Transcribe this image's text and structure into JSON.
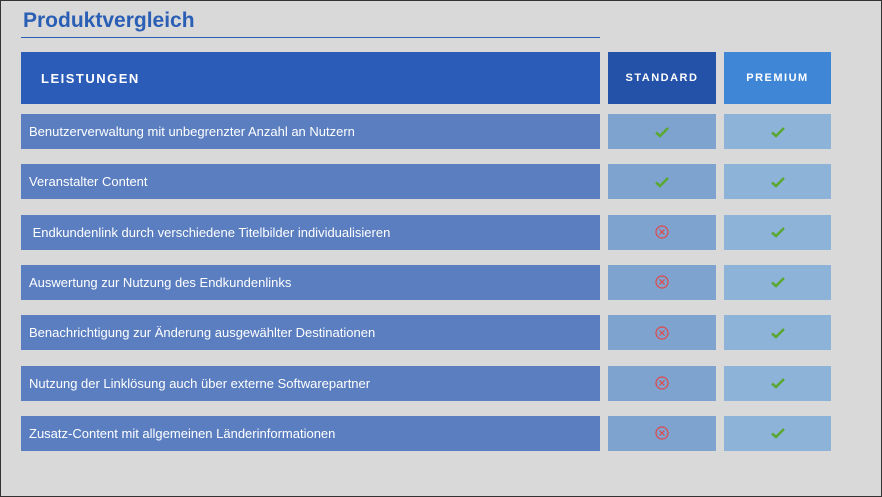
{
  "header": {
    "title": "Produktvergleich"
  },
  "table": {
    "columns": [
      "LEISTUNGEN",
      "STANDARD",
      "PREMIUM"
    ],
    "rows": [
      {
        "feature": "Benutzerverwaltung mit unbegrenzter Anzahl an Nutzern",
        "standard": true,
        "premium": true
      },
      {
        "feature": "Veranstalter Content",
        "standard": true,
        "premium": true
      },
      {
        "feature": " Endkundenlink durch verschiedene Titelbilder individualisieren",
        "standard": false,
        "premium": true
      },
      {
        "feature": "Auswertung zur Nutzung des Endkundenlinks",
        "standard": false,
        "premium": true
      },
      {
        "feature": "Benachrichtigung zur Änderung ausgewählter Destinationen",
        "standard": false,
        "premium": true
      },
      {
        "feature": "Nutzung der Linklösung auch über externe Softwarepartner",
        "standard": false,
        "premium": true
      },
      {
        "feature": "Zusatz-Content mit allgemeinen Länderinformationen",
        "standard": false,
        "premium": true
      }
    ]
  }
}
